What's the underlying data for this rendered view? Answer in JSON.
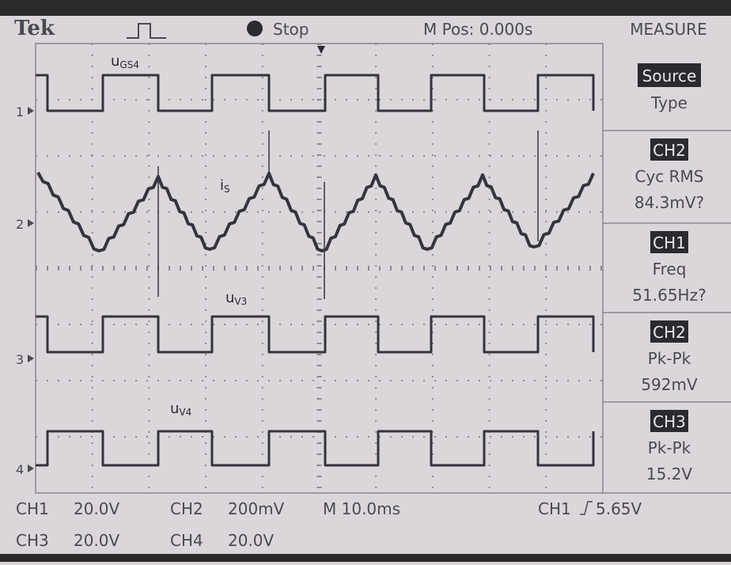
{
  "header": {
    "brand": "Tek",
    "state": "Stop",
    "position": "M Pos: 0.000s",
    "menu": "MEASURE"
  },
  "traces": {
    "channel_markers": [
      "1",
      "2",
      "3",
      "4"
    ],
    "labels": [
      {
        "main": "u",
        "sub": "GS4"
      },
      {
        "main": "i",
        "sub": "S"
      },
      {
        "main": "u",
        "sub": "V3"
      },
      {
        "main": "u",
        "sub": "V4"
      }
    ]
  },
  "measure": {
    "source": "Source",
    "type": "Type",
    "items": [
      {
        "channel": "CH2",
        "kind": "Cyc RMS",
        "reading": "84.3mV?"
      },
      {
        "channel": "CH1",
        "kind": "Freq",
        "reading": "51.65Hz?"
      },
      {
        "channel": "CH2",
        "kind": "Pk-Pk",
        "reading": "592mV"
      },
      {
        "channel": "CH3",
        "kind": "Pk-Pk",
        "reading": "15.2V"
      }
    ]
  },
  "footer": {
    "ch1": "CH1",
    "ch1_scale": "20.0V",
    "ch2": "CH2",
    "ch2_scale": "200mV",
    "timebase": "M 10.0ms",
    "trigger_source": "CH1",
    "trigger_level": "5.65V",
    "ch3": "CH3",
    "ch3_scale": "20.0V",
    "ch4": "CH4",
    "ch4_scale": "20.0V"
  }
}
